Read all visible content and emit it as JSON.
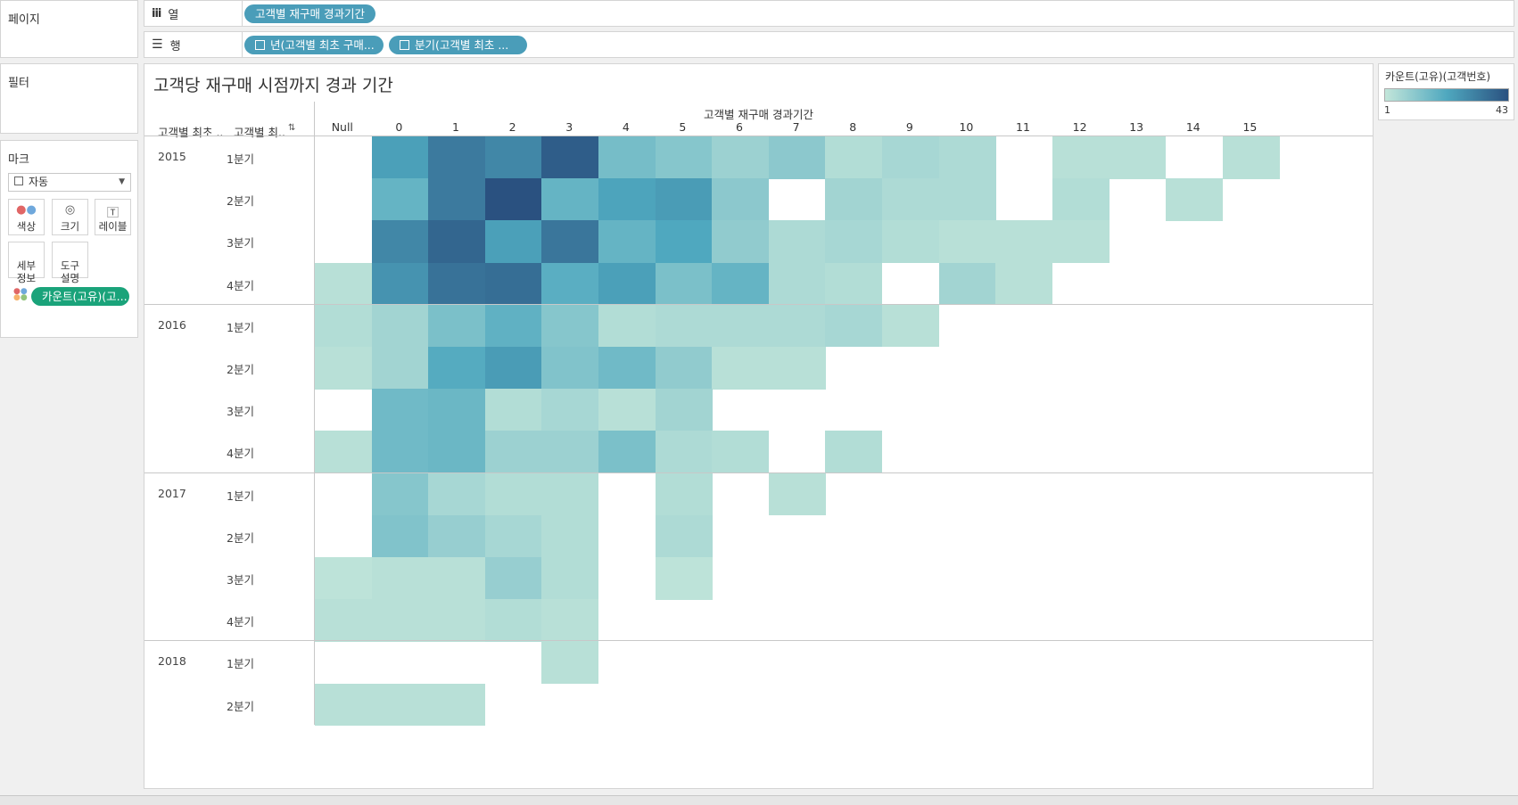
{
  "pages_shelf": {
    "title": "페이지"
  },
  "filters_shelf": {
    "title": "필터"
  },
  "marks": {
    "title": "마크",
    "type_select": "자동",
    "buttons": [
      "색상",
      "크기",
      "레이블",
      "세부\n정보",
      "도구\n설명"
    ],
    "color_pill": "카운트(고유)(고..."
  },
  "columns_shelf": {
    "label": "열",
    "pills": [
      "고객별 재구매 경과기간"
    ]
  },
  "rows_shelf": {
    "label": "행",
    "pills": [
      "년(고객별 최초 구매...",
      "분기(고객별 최초 ..."
    ]
  },
  "viz": {
    "title": "고객당 재구매 시점까지 경과 기간",
    "col_header_title": "고객별 재구매 경과기간",
    "row_header_1": "고객별 최초 ..",
    "row_header_2": "고객별 최..",
    "sort_glyph": "⇅"
  },
  "legend": {
    "title": "카운트(고유)(고객번호)",
    "min": "1",
    "max": "43",
    "color_low": "#c3e6da",
    "color_high": "#2a5180"
  },
  "chart_data": {
    "type": "heatmap",
    "x_title": "고객별 재구매 경과기간",
    "columns": [
      "Null",
      "0",
      "1",
      "2",
      "3",
      "4",
      "5",
      "6",
      "7",
      "8",
      "9",
      "10",
      "11",
      "12",
      "13",
      "14",
      "15"
    ],
    "years": [
      "2015",
      "2016",
      "2017",
      "2018"
    ],
    "row_labels": [
      [
        "2015",
        "1분기"
      ],
      [
        "2015",
        "2분기"
      ],
      [
        "2015",
        "3분기"
      ],
      [
        "2015",
        "4분기"
      ],
      [
        "2016",
        "1분기"
      ],
      [
        "2016",
        "2분기"
      ],
      [
        "2016",
        "3분기"
      ],
      [
        "2016",
        "4분기"
      ],
      [
        "2017",
        "1분기"
      ],
      [
        "2017",
        "2분기"
      ],
      [
        "2017",
        "3분기"
      ],
      [
        "2017",
        "4분기"
      ],
      [
        "2018",
        "1분기"
      ],
      [
        "2018",
        "2분기"
      ]
    ],
    "color_range": [
      1,
      43
    ],
    "values": [
      [
        null,
        24,
        33,
        30,
        40,
        15,
        12,
        8,
        11,
        4,
        6,
        5,
        null,
        3,
        3,
        null,
        3
      ],
      [
        null,
        18,
        33,
        43,
        18,
        23,
        25,
        11,
        null,
        7,
        5,
        5,
        null,
        4,
        null,
        3,
        null
      ],
      [
        null,
        30,
        38,
        24,
        34,
        18,
        22,
        10,
        5,
        6,
        4,
        3,
        3,
        3,
        null,
        null,
        null
      ],
      [
        3,
        27,
        35,
        36,
        20,
        24,
        14,
        18,
        5,
        4,
        null,
        7,
        3,
        null,
        null,
        null,
        null
      ],
      [
        4,
        7,
        14,
        19,
        12,
        4,
        5,
        5,
        5,
        6,
        3,
        null,
        null,
        null,
        null,
        null,
        null
      ],
      [
        3,
        7,
        21,
        25,
        13,
        16,
        10,
        3,
        3,
        null,
        null,
        null,
        null,
        null,
        null,
        null,
        null
      ],
      [
        null,
        16,
        17,
        4,
        6,
        3,
        7,
        null,
        null,
        null,
        null,
        null,
        null,
        null,
        null,
        null,
        null
      ],
      [
        3,
        16,
        17,
        8,
        8,
        14,
        5,
        4,
        null,
        4,
        null,
        null,
        null,
        null,
        null,
        null,
        null
      ],
      [
        null,
        12,
        6,
        4,
        4,
        null,
        4,
        null,
        3,
        null,
        null,
        null,
        null,
        null,
        null,
        null,
        null
      ],
      [
        null,
        13,
        9,
        6,
        4,
        null,
        5,
        null,
        null,
        null,
        null,
        null,
        null,
        null,
        null,
        null,
        null
      ],
      [
        2,
        3,
        3,
        9,
        4,
        null,
        2,
        null,
        null,
        null,
        null,
        null,
        null,
        null,
        null,
        null,
        null
      ],
      [
        3,
        3,
        3,
        4,
        3,
        null,
        null,
        null,
        null,
        null,
        null,
        null,
        null,
        null,
        null,
        null,
        null
      ],
      [
        null,
        null,
        null,
        null,
        3,
        null,
        null,
        null,
        null,
        null,
        null,
        null,
        null,
        null,
        null,
        null,
        null
      ],
      [
        3,
        3,
        3,
        null,
        null,
        null,
        null,
        null,
        null,
        null,
        null,
        null,
        null,
        null,
        null,
        null,
        null
      ]
    ]
  }
}
